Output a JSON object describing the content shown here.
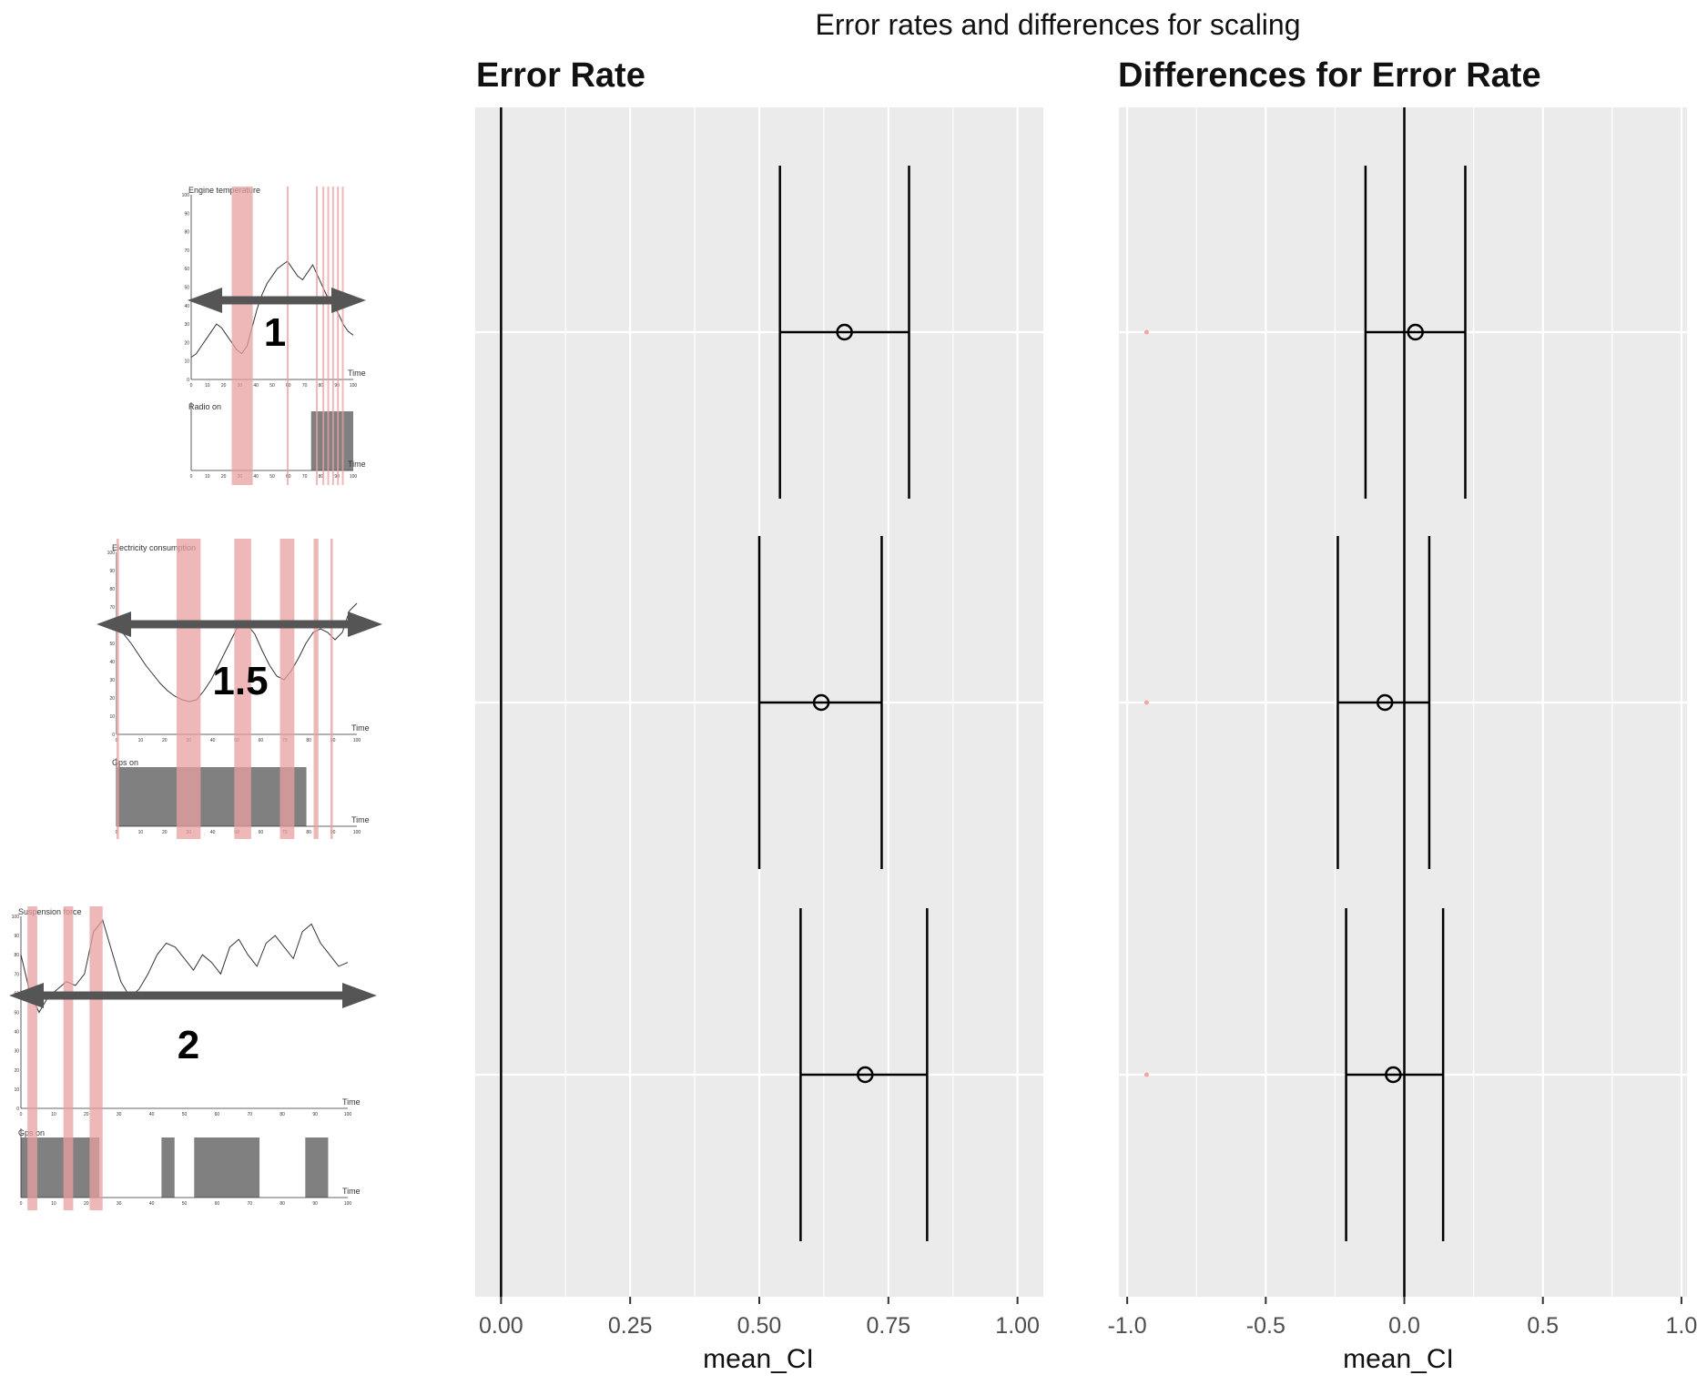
{
  "title": "Error rates and differences for scaling",
  "colors": {
    "panel_bg": "#ebebeb",
    "grid": "#ffffff",
    "ink": "#000000",
    "highlight": "#e8a0a0",
    "arrow": "#555555",
    "bar": "#808080",
    "faint_dot": "#f4a6a0"
  },
  "thumbnails": [
    {
      "scale_label": "1",
      "series_title": "Engine temperature",
      "bottom_title": "Radio on",
      "x_label": "Time",
      "y_ticks": [
        "100",
        "90",
        "80",
        "70",
        "60",
        "50",
        "40",
        "30",
        "20",
        "10",
        "0"
      ],
      "x_ticks": [
        "0",
        "10",
        "20",
        "30",
        "40",
        "50",
        "60",
        "70",
        "80",
        "90",
        "100"
      ],
      "highlights": [
        [
          25,
          38
        ],
        [
          59,
          60
        ],
        [
          77,
          78
        ],
        [
          81,
          82
        ],
        [
          84,
          85
        ],
        [
          87,
          88
        ],
        [
          90,
          91
        ],
        [
          93,
          94
        ]
      ],
      "line": [
        12,
        14,
        18,
        22,
        26,
        30,
        28,
        24,
        20,
        16,
        14,
        18,
        28,
        38,
        46,
        52,
        56,
        60,
        62,
        64,
        60,
        56,
        54,
        58,
        62,
        56,
        50,
        44,
        40,
        36,
        30,
        26,
        24
      ],
      "bars": [
        [
          74,
          100
        ]
      ]
    },
    {
      "scale_label": "1.5",
      "series_title": "Electricity consumption",
      "bottom_title": "Gps on",
      "x_label": "Time",
      "y_ticks": [
        "100",
        "90",
        "80",
        "70",
        "60",
        "50",
        "40",
        "30",
        "20",
        "10",
        "0"
      ],
      "x_ticks": [
        "0",
        "10",
        "20",
        "30",
        "40",
        "50",
        "60",
        "70",
        "80",
        "90",
        "100"
      ],
      "highlights": [
        [
          0,
          1
        ],
        [
          25,
          35
        ],
        [
          49,
          56
        ],
        [
          68,
          74
        ],
        [
          82,
          84
        ],
        [
          89,
          90
        ]
      ],
      "line": [
        60,
        55,
        50,
        44,
        38,
        33,
        28,
        24,
        21,
        19,
        18,
        19,
        24,
        30,
        38,
        46,
        54,
        62,
        60,
        55,
        46,
        38,
        32,
        30,
        35,
        42,
        50,
        56,
        58,
        56,
        52,
        56,
        68,
        72
      ],
      "bars": [
        [
          0,
          79
        ]
      ]
    },
    {
      "scale_label": "2",
      "series_title": "Suspension force",
      "bottom_title": "Gps on",
      "x_label": "Time",
      "y_ticks": [
        "100",
        "90",
        "80",
        "70",
        "60",
        "50",
        "40",
        "30",
        "20",
        "10",
        "0"
      ],
      "x_ticks": [
        "0",
        "10",
        "20",
        "30",
        "40",
        "50",
        "60",
        "70",
        "80",
        "90",
        "100"
      ],
      "highlights": [
        [
          2,
          5
        ],
        [
          13,
          16
        ],
        [
          21,
          25
        ]
      ],
      "line": [
        80,
        60,
        50,
        58,
        62,
        66,
        64,
        70,
        92,
        98,
        82,
        66,
        58,
        62,
        70,
        80,
        86,
        84,
        78,
        72,
        80,
        76,
        70,
        84,
        88,
        80,
        74,
        86,
        90,
        84,
        78,
        92,
        96,
        86,
        80,
        74,
        76
      ],
      "bars": [
        [
          0,
          24
        ],
        [
          43,
          47
        ],
        [
          53,
          73
        ],
        [
          87,
          94
        ]
      ]
    }
  ],
  "chart_data": [
    {
      "type": "errorbar",
      "title": "Error Rate",
      "xlabel": "mean_CI",
      "xlim": [
        -0.05,
        1.05
      ],
      "x_ticks": [
        "0.00",
        "0.25",
        "0.50",
        "0.75",
        "1.00"
      ],
      "x_tick_values": [
        0,
        0.25,
        0.5,
        0.75,
        1.0
      ],
      "ref_line": 0,
      "points": [
        {
          "mean": 0.665,
          "low": 0.54,
          "high": 0.79
        },
        {
          "mean": 0.62,
          "low": 0.5,
          "high": 0.737
        },
        {
          "mean": 0.705,
          "low": 0.58,
          "high": 0.825
        }
      ]
    },
    {
      "type": "errorbar",
      "title": "Differences for Error Rate",
      "xlabel": "mean_CI",
      "xlim": [
        -1.03,
        1.02
      ],
      "x_ticks": [
        "-1.0",
        "-0.5",
        "0.0",
        "0.5",
        "1.0"
      ],
      "x_tick_values": [
        -1.0,
        -0.5,
        0.0,
        0.5,
        1.0
      ],
      "ref_line": 0,
      "points": [
        {
          "mean": 0.04,
          "low": -0.14,
          "high": 0.22
        },
        {
          "mean": -0.07,
          "low": -0.24,
          "high": 0.09
        },
        {
          "mean": -0.04,
          "low": -0.21,
          "high": 0.14
        }
      ],
      "marker_x": -0.93
    }
  ]
}
